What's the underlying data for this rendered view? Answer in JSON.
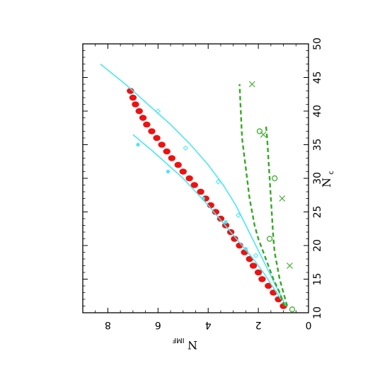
{
  "chart_data": {
    "type": "scatter",
    "orientation": "rotated-90-clockwise",
    "title": "",
    "xlabel_main": "N",
    "xlabel_sub": "c",
    "ylabel_main": "N",
    "ylabel_sub": "IMF",
    "xlim": [
      10,
      50
    ],
    "ylim": [
      0,
      9
    ],
    "x_ticks": [
      "10",
      "15",
      "20",
      "25",
      "30",
      "35",
      "40",
      "45",
      "50"
    ],
    "y_ticks": [
      "0",
      "2",
      "4",
      "6",
      "8"
    ],
    "grid": false,
    "legend": "none",
    "colors": {
      "red": "#ee1111",
      "cyan": "#4ce6f0",
      "green": "#33aa22"
    },
    "series": [
      {
        "style": "red-filled-circles",
        "x": [
          11,
          12,
          13,
          14,
          15,
          16,
          17,
          18,
          19,
          20,
          21,
          22,
          23,
          24,
          25,
          26,
          27,
          28,
          29,
          30,
          31,
          32,
          33,
          34,
          35,
          36,
          37,
          38,
          39,
          40,
          41,
          42,
          43
        ],
        "y": [
          1.0,
          1.2,
          1.4,
          1.6,
          1.85,
          2.0,
          2.2,
          2.35,
          2.55,
          2.75,
          2.95,
          3.1,
          3.3,
          3.5,
          3.7,
          3.9,
          4.1,
          4.3,
          4.55,
          4.75,
          5.0,
          5.2,
          5.45,
          5.65,
          5.85,
          6.05,
          6.25,
          6.45,
          6.6,
          6.75,
          6.9,
          7.0,
          7.1
        ]
      },
      {
        "style": "cyan-filled-markers",
        "x": [
          19.5,
          23.5,
          27,
          31,
          35
        ],
        "y": [
          2.5,
          3.3,
          4.2,
          5.6,
          6.8
        ]
      },
      {
        "style": "cyan-open-diamonds",
        "x": [
          18.5,
          24.5,
          29.5,
          34.5,
          40
        ],
        "y": [
          2.1,
          2.8,
          3.6,
          4.9,
          6.0
        ]
      },
      {
        "style": "cyan-solid-line-upper",
        "x": [
          12,
          14,
          16,
          18,
          20,
          22,
          24,
          26,
          28,
          30,
          32,
          34,
          36.5
        ],
        "y": [
          1.1,
          1.45,
          1.8,
          2.2,
          2.65,
          3.1,
          3.55,
          4.0,
          4.5,
          5.0,
          5.6,
          6.2,
          7.0
        ]
      },
      {
        "style": "cyan-solid-line-lower",
        "x": [
          11,
          14,
          17,
          20,
          23,
          26,
          29,
          32,
          35,
          38,
          41,
          44,
          47
        ],
        "y": [
          0.9,
          1.3,
          1.7,
          2.1,
          2.5,
          2.9,
          3.4,
          4.0,
          4.7,
          5.5,
          6.4,
          7.3,
          8.3
        ]
      },
      {
        "style": "green-dashed-upper",
        "x": [
          11,
          13,
          15,
          17,
          19,
          21,
          23,
          25,
          27,
          30,
          33,
          36,
          40,
          44
        ],
        "y": [
          0.95,
          1.15,
          1.4,
          1.6,
          1.8,
          2.0,
          2.15,
          2.25,
          2.35,
          2.45,
          2.55,
          2.65,
          2.7,
          2.75
        ]
      },
      {
        "style": "green-dashed-lower",
        "x": [
          11,
          13,
          15,
          17,
          19,
          21,
          24,
          27,
          30,
          33,
          36,
          38
        ],
        "y": [
          0.85,
          1.0,
          1.15,
          1.25,
          1.35,
          1.4,
          1.45,
          1.5,
          1.55,
          1.6,
          1.65,
          1.7
        ]
      },
      {
        "style": "green-open-circles",
        "x": [
          10.5,
          21,
          30,
          37
        ],
        "y": [
          0.65,
          1.55,
          1.35,
          1.95
        ]
      },
      {
        "style": "green-crosses",
        "x": [
          17,
          27,
          36.5,
          44
        ],
        "y": [
          0.75,
          1.05,
          1.8,
          2.25
        ]
      }
    ]
  }
}
